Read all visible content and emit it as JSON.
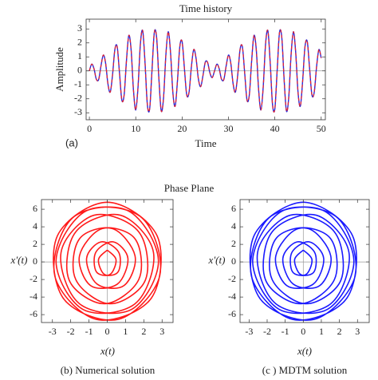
{
  "phase_plane_title": "Phase Plane",
  "chart_data": [
    {
      "type": "line",
      "title": "Time history",
      "xlabel": "Time",
      "ylabel": "Amplitude",
      "label": "(a)",
      "xlim": [
        -0.7,
        50.9
      ],
      "ylim": [
        -3.5,
        3.7
      ],
      "xticks": [
        0,
        10,
        20,
        30,
        40,
        50
      ],
      "yticks": [
        -3,
        -2,
        -1,
        0,
        1,
        2,
        3
      ],
      "x": [
        0,
        0.5,
        1,
        1.5,
        2,
        2.5,
        3,
        3.5,
        4,
        4.5,
        5,
        5.5,
        6,
        6.5,
        7,
        7.5,
        8,
        8.5,
        9,
        9.5,
        10,
        10.5,
        11,
        11.5,
        12,
        12.5,
        13,
        13.5,
        14,
        14.5,
        15,
        15.5,
        16,
        16.5,
        17,
        17.5,
        18,
        18.5,
        19,
        19.5,
        20,
        20.5,
        21,
        21.5,
        22,
        22.5,
        23,
        23.5,
        24,
        24.5,
        25,
        25.5,
        26,
        26.5,
        27,
        27.5,
        28,
        28.5,
        29,
        29.5,
        30,
        30.5,
        31,
        31.5,
        32,
        32.5,
        33,
        33.5,
        34,
        34.5,
        35,
        35.5,
        36,
        36.5,
        37,
        37.5,
        38,
        38.5,
        39,
        39.5,
        40,
        40.5,
        41,
        41.5,
        42,
        42.5,
        43,
        43.5,
        44,
        44.5,
        45,
        45.5,
        46,
        46.5,
        47,
        47.5,
        48,
        48.5,
        49,
        49.5,
        50
      ],
      "series": [
        {
          "color": "#2a2ad8",
          "dash": false,
          "values": [
            0,
            0.48,
            0.15,
            -0.6,
            -0.62,
            0.34,
            1.13,
            0.55,
            -0.92,
            -1.52,
            -0.28,
            1.53,
            1.72,
            -0.16,
            -2.09,
            -1.72,
            0.72,
            2.53,
            1.52,
            -1.33,
            -2.8,
            -1.13,
            1.91,
            2.87,
            0.6,
            -2.4,
            -2.73,
            0,
            2.73,
            2.4,
            -0.6,
            -2.87,
            -1.91,
            1.13,
            2.8,
            1.33,
            -1.52,
            -2.53,
            -0.72,
            1.72,
            2.09,
            0.16,
            -1.72,
            -1.53,
            0.28,
            1.52,
            0.92,
            -0.55,
            -1.13,
            -0.34,
            0.62,
            0.6,
            -0.15,
            -0.48,
            0,
            0.48,
            0.15,
            -0.6,
            -0.62,
            0.34,
            1.13,
            0.55,
            -0.92,
            -1.52,
            -0.28,
            1.53,
            1.72,
            -0.16,
            -2.09,
            -1.72,
            0.72,
            2.53,
            1.52,
            -1.33,
            -2.8,
            -1.13,
            1.91,
            2.87,
            0.6,
            -2.4,
            -2.73,
            0,
            2.73,
            2.4,
            -0.6,
            -2.87,
            -1.91,
            1.13,
            2.8,
            1.33,
            -1.52,
            -2.53,
            -0.72,
            1.72,
            2.09,
            0.16,
            -1.72,
            -1.53,
            0.28,
            1.52,
            0.92
          ]
        },
        {
          "color": "#e8202a",
          "dash": true,
          "values": [
            0,
            0.48,
            0.15,
            -0.6,
            -0.62,
            0.34,
            1.13,
            0.55,
            -0.92,
            -1.52,
            -0.28,
            1.53,
            1.72,
            -0.16,
            -2.09,
            -1.72,
            0.72,
            2.53,
            1.52,
            -1.33,
            -2.8,
            -1.13,
            1.91,
            2.87,
            0.6,
            -2.4,
            -2.73,
            0,
            2.73,
            2.4,
            -0.6,
            -2.87,
            -1.91,
            1.13,
            2.8,
            1.33,
            -1.52,
            -2.53,
            -0.72,
            1.72,
            2.09,
            0.16,
            -1.72,
            -1.53,
            0.28,
            1.52,
            0.92,
            -0.55,
            -1.13,
            -0.34,
            0.62,
            0.6,
            -0.15,
            -0.48,
            0,
            0.48,
            0.15,
            -0.6,
            -0.62,
            0.34,
            1.13,
            0.55,
            -0.92,
            -1.52,
            -0.28,
            1.53,
            1.72,
            -0.16,
            -2.09,
            -1.72,
            0.72,
            2.53,
            1.52,
            -1.33,
            -2.8,
            -1.13,
            1.91,
            2.87,
            0.6,
            -2.4,
            -2.73,
            0,
            2.73,
            2.4,
            -0.6,
            -2.87,
            -1.91,
            1.13,
            2.8,
            1.33,
            -1.52,
            -2.53,
            -0.72,
            1.72,
            2.09,
            0.16,
            -1.72,
            -1.53,
            0.28,
            1.52,
            0.92
          ]
        }
      ]
    },
    {
      "type": "line",
      "xlabel": "x(t)",
      "ylabel": "x′(t)",
      "caption": "(b) Numerical solution",
      "xlim": [
        -3.6,
        3.6
      ],
      "ylim": [
        -6.9,
        7.1
      ],
      "xticks": [
        -3,
        -2,
        -1,
        0,
        1,
        2,
        3
      ],
      "yticks": [
        -6,
        -4,
        -2,
        0,
        2,
        4,
        6
      ],
      "x": [
        0,
        0.48,
        0.15,
        -0.6,
        -0.62,
        0.34,
        1.13,
        0.55,
        -0.92,
        -1.52,
        -0.28,
        1.53,
        1.72,
        -0.16,
        -2.09,
        -1.72,
        0.72,
        2.53,
        1.52,
        -1.33,
        -2.8,
        -1.13,
        1.91,
        2.87,
        0.6,
        -2.4,
        -2.73,
        0,
        2.73,
        2.4,
        -0.6,
        -2.87,
        -1.91,
        1.13,
        2.8,
        1.33,
        -1.52,
        -2.53,
        -0.72,
        1.72,
        2.09,
        0.16,
        -1.72,
        -1.53,
        0.28,
        1.52,
        0.92,
        -0.55,
        -1.13,
        -0.34,
        0.62,
        0.6,
        -0.15,
        -0.48,
        0
      ],
      "series": [
        {
          "color": "#ff1a1a",
          "dash": false,
          "values": [
            1.35,
            0.25,
            -1.43,
            -1.11,
            1.12,
            2.28,
            0.4,
            -2.53,
            -2.68,
            0.69,
            3.79,
            2.6,
            -2.02,
            -4.76,
            -2.04,
            3.43,
            5.32,
            1.07,
            -4.76,
            -5.41,
            0.19,
            5.84,
            5,
            -1.6,
            -6.55,
            -4.16,
            2.97,
            6.8,
            2.97,
            -4.16,
            -6.55,
            -1.6,
            5,
            5.84,
            0.19,
            -5.41,
            -4.76,
            1.07,
            5.32,
            3.43,
            -2.04,
            -4.76,
            -2.02,
            2.6,
            3.79,
            0.69,
            -2.68,
            -2.53,
            0.4,
            2.28,
            1.12,
            -1.11,
            -1.43,
            0.25,
            1.35
          ]
        }
      ]
    },
    {
      "type": "line",
      "xlabel": "x(t)",
      "ylabel": "x′(t)",
      "caption": "(c ) MDTM solution",
      "xlim": [
        -3.5,
        3.65
      ],
      "ylim": [
        -6.9,
        7.1
      ],
      "xticks": [
        -3,
        -2,
        -1,
        0,
        1,
        2,
        3
      ],
      "yticks": [
        -6,
        -4,
        -2,
        0,
        2,
        4,
        6
      ],
      "x": [
        0,
        0.48,
        0.15,
        -0.6,
        -0.62,
        0.34,
        1.13,
        0.55,
        -0.92,
        -1.52,
        -0.28,
        1.53,
        1.72,
        -0.16,
        -2.09,
        -1.72,
        0.72,
        2.53,
        1.52,
        -1.33,
        -2.8,
        -1.13,
        1.91,
        2.87,
        0.6,
        -2.4,
        -2.73,
        0,
        2.73,
        2.4,
        -0.6,
        -2.87,
        -1.91,
        1.13,
        2.8,
        1.33,
        -1.52,
        -2.53,
        -0.72,
        1.72,
        2.09,
        0.16,
        -1.72,
        -1.53,
        0.28,
        1.52,
        0.92,
        -0.55,
        -1.13,
        -0.34,
        0.62,
        0.6,
        -0.15,
        -0.48,
        0
      ],
      "series": [
        {
          "color": "#1a1aff",
          "dash": false,
          "values": [
            1.35,
            0.25,
            -1.43,
            -1.11,
            1.12,
            2.28,
            0.4,
            -2.53,
            -2.68,
            0.69,
            3.79,
            2.6,
            -2.02,
            -4.76,
            -2.04,
            3.43,
            5.32,
            1.07,
            -4.76,
            -5.41,
            0.19,
            5.84,
            5,
            -1.6,
            -6.55,
            -4.16,
            2.97,
            6.8,
            2.97,
            -4.16,
            -6.55,
            -1.6,
            5,
            5.84,
            0.19,
            -5.41,
            -4.76,
            1.07,
            5.32,
            3.43,
            -2.04,
            -4.76,
            -2.02,
            2.6,
            3.79,
            0.69,
            -2.68,
            -2.53,
            0.4,
            2.28,
            1.12,
            -1.11,
            -1.43,
            0.25,
            1.35
          ]
        }
      ]
    }
  ]
}
